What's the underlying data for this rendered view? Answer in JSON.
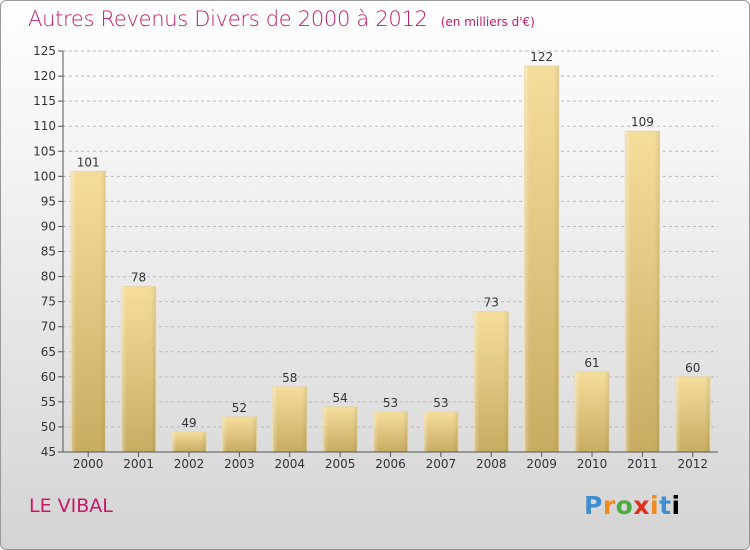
{
  "header": {
    "title": "Autres Revenus Divers de 2000 à 2012",
    "unit_note": "(en milliers d'€)"
  },
  "footer": {
    "commune": "LE VIBAL",
    "logo_letters": [
      "P",
      "r",
      "o",
      "x",
      "i",
      "t",
      "i"
    ]
  },
  "colors": {
    "title": "#c8186a",
    "bar_light": "#f5dd9c",
    "bar_dark": "#c8ac62",
    "axis": "#555555",
    "grid": "#bbbbbb"
  },
  "chart_data": {
    "type": "bar",
    "categories": [
      "2000",
      "2001",
      "2002",
      "2003",
      "2004",
      "2005",
      "2006",
      "2007",
      "2008",
      "2009",
      "2010",
      "2011",
      "2012"
    ],
    "values": [
      101,
      78,
      49,
      52,
      58,
      54,
      53,
      53,
      73,
      122,
      61,
      109,
      60
    ],
    "title": "Autres Revenus Divers de 2000 à 2012",
    "subtitle": "(en milliers d'€)",
    "xlabel": "",
    "ylabel": "",
    "ylim": [
      45,
      125
    ],
    "yticks": [
      45,
      50,
      55,
      60,
      65,
      70,
      75,
      80,
      85,
      90,
      95,
      100,
      105,
      110,
      115,
      120,
      125
    ],
    "grid": true,
    "legend": "none"
  }
}
